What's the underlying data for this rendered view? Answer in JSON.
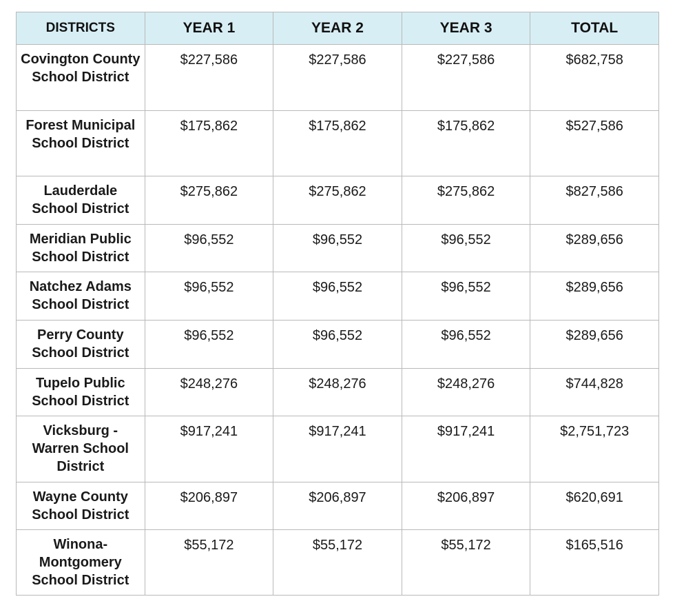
{
  "table": {
    "header": [
      "DISTRICTS",
      "YEAR 1",
      "YEAR 2",
      "YEAR 3",
      "TOTAL"
    ],
    "rows": [
      [
        "Covington County School District",
        "$227,586",
        "$227,586",
        "$227,586",
        "$682,758"
      ],
      [
        "Forest Municipal School District",
        "$175,862",
        "$175,862",
        "$175,862",
        "$527,586"
      ],
      [
        "Lauderdale School District",
        "$275,862",
        "$275,862",
        "$275,862",
        "$827,586"
      ],
      [
        "Meridian Public School District",
        "$96,552",
        "$96,552",
        "$96,552",
        "$289,656"
      ],
      [
        "Natchez Adams School District",
        "$96,552",
        "$96,552",
        "$96,552",
        "$289,656"
      ],
      [
        "Perry County School District",
        "$96,552",
        "$96,552",
        "$96,552",
        "$289,656"
      ],
      [
        "Tupelo Public School District",
        "$248,276",
        "$248,276",
        "$248,276",
        "$744,828"
      ],
      [
        "Vicksburg - Warren School District",
        "$917,241",
        "$917,241",
        "$917,241",
        "$2,751,723"
      ],
      [
        "Wayne County School District",
        "$206,897",
        "$206,897",
        "$206,897",
        "$620,691"
      ],
      [
        "Winona-Montgomery School District",
        "$55,172",
        "$55,172",
        "$55,172",
        "$165,516"
      ]
    ]
  }
}
